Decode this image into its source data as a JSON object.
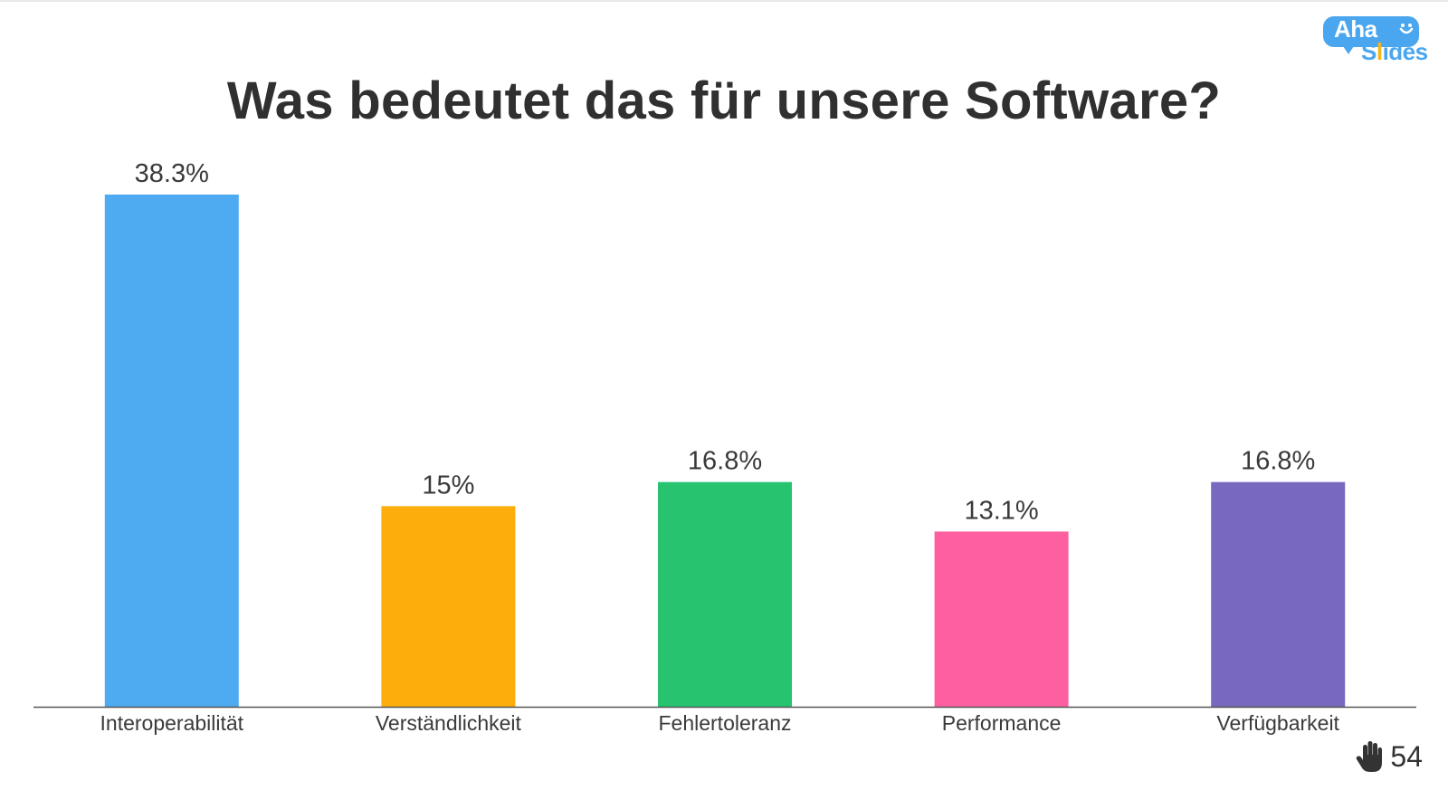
{
  "title": "Was bedeutet das für unsere Software?",
  "logo": {
    "line1": "Aha",
    "line2_pre": "S",
    "line2_accent": "l",
    "line2_post": "ides"
  },
  "responses": {
    "icon": "raised-hand-icon",
    "count": "54"
  },
  "colors": {
    "bars": [
      "#4eabf1",
      "#fdae0c",
      "#27c36f",
      "#fd5fa0",
      "#7868be"
    ],
    "axis": "#555555",
    "logo_blue": "#4aa6ee",
    "logo_yellow": "#f5b51c"
  },
  "chart_data": {
    "type": "bar",
    "title": "Was bedeutet das für unsere Software?",
    "categories": [
      "Interoperabilität",
      "Verständlichkeit",
      "Fehlertoleranz",
      "Performance",
      "Verfügbarkeit"
    ],
    "values": [
      38.3,
      15,
      16.8,
      13.1,
      16.8
    ],
    "value_labels": [
      "38.3%",
      "15%",
      "16.8%",
      "13.1%",
      "16.8%"
    ],
    "xlabel": "",
    "ylabel": "",
    "ylim": [
      0,
      38.3
    ],
    "grid": false,
    "legend": "none"
  }
}
